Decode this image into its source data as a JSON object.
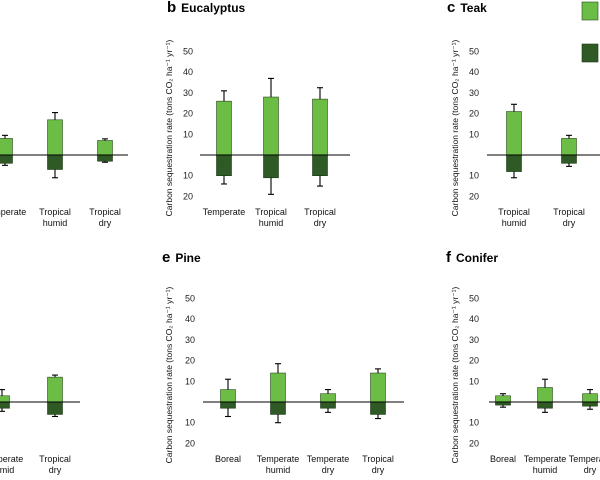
{
  "colors": {
    "above": "#6cbd45",
    "below": "#2f5a26",
    "axis": "#000000",
    "whisker": "#000000"
  },
  "ylabel": "Carbon sequestration rate (tons CO₂ ha⁻¹ yr⁻¹)",
  "chart_data": [
    {
      "id": "a",
      "letter": "",
      "title": "",
      "type": "bar",
      "categories": [
        "Temperate",
        "Tropical\nhumid",
        "Tropical\ndry"
      ],
      "series": [
        {
          "values": [
            8,
            17,
            7
          ],
          "errors": [
            1.5,
            3.5,
            0.8
          ]
        },
        {
          "values": [
            -4,
            -7,
            -3
          ],
          "errors": [
            1,
            4,
            0.5
          ]
        }
      ],
      "ylim": [
        -20,
        50
      ],
      "ticks_above": [],
      "ticks_below": []
    },
    {
      "id": "b",
      "letter": "b",
      "title": "Eucalyptus",
      "type": "bar",
      "categories": [
        "Temperate",
        "Tropical\nhumid",
        "Tropical\ndry"
      ],
      "series": [
        {
          "values": [
            26,
            28,
            27
          ],
          "errors": [
            5,
            9,
            5.5
          ]
        },
        {
          "values": [
            -10,
            -11,
            -10
          ],
          "errors": [
            4,
            8,
            5
          ]
        }
      ],
      "ylim": [
        -20,
        50
      ],
      "ticks_above": [
        "50",
        "40",
        "30",
        "20",
        "10"
      ],
      "ticks_below": [
        "10",
        "20"
      ]
    },
    {
      "id": "c",
      "letter": "c",
      "title": "Teak",
      "type": "bar",
      "categories": [
        "Tropical\nhumid",
        "Tropical\ndry"
      ],
      "series": [
        {
          "values": [
            21,
            8
          ],
          "errors": [
            3.5,
            1.5
          ]
        },
        {
          "values": [
            -8,
            -4
          ],
          "errors": [
            3,
            1.5
          ]
        }
      ],
      "ylim": [
        -20,
        50
      ],
      "ticks_above": [
        "50",
        "40",
        "30",
        "20",
        "10"
      ],
      "ticks_below": [
        "10",
        "20"
      ]
    },
    {
      "id": "d",
      "letter": "",
      "title": "",
      "type": "bar",
      "categories": [
        "Temperate\nhumid",
        "Tropical\ndry"
      ],
      "series": [
        {
          "values": [
            3,
            12
          ],
          "errors": [
            3,
            1
          ]
        },
        {
          "values": [
            -3,
            -6
          ],
          "errors": [
            1.5,
            1
          ]
        }
      ],
      "ylim": [
        -20,
        50
      ],
      "ticks_above": [],
      "ticks_below": []
    },
    {
      "id": "e",
      "letter": "e",
      "title": "Pine",
      "type": "bar",
      "categories": [
        "Boreal",
        "Temperate\nhumid",
        "Temperate\ndry",
        "Tropical\ndry"
      ],
      "series": [
        {
          "values": [
            6,
            14,
            4,
            14
          ],
          "errors": [
            5,
            4.5,
            2,
            2
          ]
        },
        {
          "values": [
            -3,
            -6,
            -3,
            -6
          ],
          "errors": [
            4,
            4,
            2,
            2
          ]
        }
      ],
      "ylim": [
        -20,
        50
      ],
      "ticks_above": [
        "50",
        "40",
        "30",
        "20",
        "10"
      ],
      "ticks_below": [
        "10",
        "20"
      ]
    },
    {
      "id": "f",
      "letter": "f",
      "title": "Conifer",
      "type": "bar",
      "categories": [
        "Boreal",
        "Temperate\nhumid",
        "Temperate\ndry"
      ],
      "series": [
        {
          "values": [
            3,
            7,
            4
          ],
          "errors": [
            1,
            4,
            2
          ]
        },
        {
          "values": [
            -1.5,
            -3,
            -2
          ],
          "errors": [
            1,
            2,
            1.5
          ]
        }
      ],
      "ylim": [
        -20,
        50
      ],
      "ticks_above": [
        "50",
        "40",
        "30",
        "20",
        "10"
      ],
      "ticks_below": [
        "10",
        "20"
      ]
    }
  ]
}
